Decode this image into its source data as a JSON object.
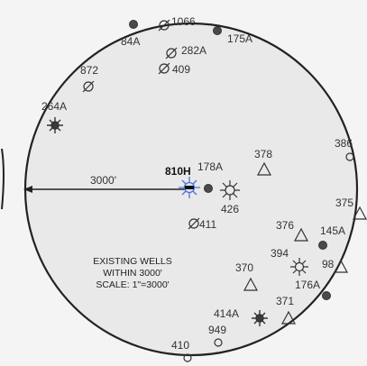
{
  "map": {
    "radius_label": "3000'",
    "legend": [
      "EXISTING WELLS",
      "WITHIN 3000'",
      "SCALE: 1\"=3000'"
    ]
  },
  "colors": {
    "background": "#f4f4f4",
    "circle_fill": "#e9e9e9",
    "line": "#222222",
    "subject_well": "#4f74d8"
  },
  "wells": [
    {
      "id": "1066",
      "symbol": "plugged"
    },
    {
      "id": "84A",
      "symbol": "oil"
    },
    {
      "id": "175A",
      "symbol": "oil"
    },
    {
      "id": "282A",
      "symbol": "plugged"
    },
    {
      "id": "409",
      "symbol": "plugged"
    },
    {
      "id": "872",
      "symbol": "plugged"
    },
    {
      "id": "264A",
      "symbol": "oil-gas"
    },
    {
      "id": "378",
      "symbol": "location"
    },
    {
      "id": "386",
      "symbol": "dry"
    },
    {
      "id": "810H",
      "symbol": "subject-well"
    },
    {
      "id": "178A",
      "symbol": "oil"
    },
    {
      "id": "426",
      "symbol": "gas"
    },
    {
      "id": "411",
      "symbol": "plugged"
    },
    {
      "id": "375",
      "symbol": "location"
    },
    {
      "id": "376",
      "symbol": "location"
    },
    {
      "id": "145A",
      "symbol": "oil"
    },
    {
      "id": "394",
      "symbol": "gas"
    },
    {
      "id": "98",
      "symbol": "location"
    },
    {
      "id": "370",
      "symbol": "location"
    },
    {
      "id": "176A",
      "symbol": "oil"
    },
    {
      "id": "371",
      "symbol": "location"
    },
    {
      "id": "414A",
      "symbol": "oil-gas"
    },
    {
      "id": "949",
      "symbol": "dry"
    },
    {
      "id": "410",
      "symbol": "dry"
    }
  ]
}
